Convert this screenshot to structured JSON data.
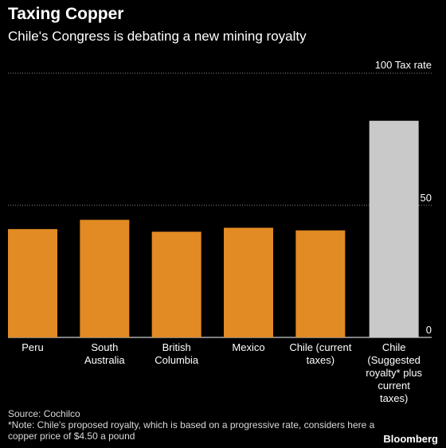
{
  "title": "Taxing Copper",
  "subtitle": "Chile's Congress is debating a new mining royalty",
  "chart_data": {
    "type": "bar",
    "categories": [
      [
        "Peru"
      ],
      [
        "South",
        "Australia"
      ],
      [
        "British",
        "Columbia"
      ],
      [
        "Mexico"
      ],
      [
        "Chile (current",
        "taxes)"
      ],
      [
        "Chile",
        "(Suggested",
        "royalty* plus",
        "current",
        "taxes)"
      ]
    ],
    "values": [
      41,
      44.5,
      40,
      41.5,
      40.5,
      82
    ],
    "ylabel": "Tax rate",
    "ylim": [
      0,
      100
    ],
    "yticks": [
      {
        "value": 0,
        "label": "0"
      },
      {
        "value": 50,
        "label": "50"
      },
      {
        "value": 100,
        "label": "100"
      }
    ],
    "grid": true,
    "colors": [
      "#e28a23",
      "#e28a23",
      "#e28a23",
      "#e28a23",
      "#e28a23",
      "#c9c9c9"
    ]
  },
  "footer": {
    "source": "Source: Cochilco",
    "note": "*Note: Chile's proposed royalty, which is based on a progressive rate, considers here a copper price of $4.50 a pound"
  },
  "brand": "Bloomberg"
}
